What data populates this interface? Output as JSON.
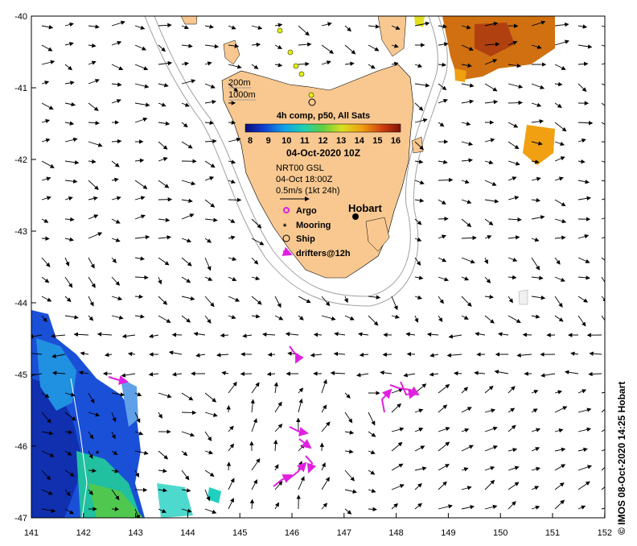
{
  "map": {
    "x_ticks": [
      "141",
      "142",
      "143",
      "144",
      "145",
      "146",
      "147",
      "148",
      "149",
      "150",
      "151",
      "152"
    ],
    "y_ticks": [
      "-40",
      "-41",
      "-42",
      "-43",
      "-44",
      "-45",
      "-46",
      "-47"
    ],
    "depth_contours": [
      "200m",
      "1000m"
    ],
    "place_label": "Hobart",
    "colorbar": {
      "title": "4h comp, p50, All Sats",
      "ticks": [
        "8",
        "9",
        "10",
        "11",
        "12",
        "13",
        "14",
        "15",
        "16"
      ],
      "colors": [
        "#0a0a78",
        "#1040d0",
        "#10a0e8",
        "#20d0b0",
        "#60d040",
        "#d8e020",
        "#f0a010",
        "#d04010",
        "#801008"
      ]
    },
    "date": "04-Oct-2020 10Z",
    "current_source": "NRT00 GSL",
    "current_time": "04-Oct 18:00Z",
    "scale_label": "0.5m/s (1kt 24h)",
    "legend": [
      "Argo",
      "Mooring",
      "Ship",
      "drifters@12h"
    ],
    "land_color": "#f8c890",
    "drifter_color": "#e020e0"
  },
  "credit": "© IMOS 08-Oct-2020 14:25 Hobart"
}
